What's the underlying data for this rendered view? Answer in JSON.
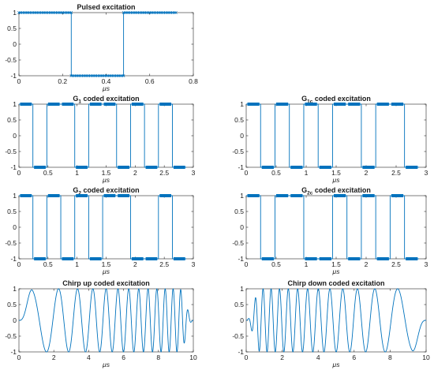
{
  "colors": {
    "line": "#0072BD",
    "axis": "#262626",
    "text": "#1a1a1a"
  },
  "chart_data": [
    {
      "type": "line",
      "title": "Pulsed excitation",
      "xlabel": "μs",
      "xlim": [
        0,
        0.8
      ],
      "ylim": [
        -1,
        1
      ],
      "xticks": [
        0,
        0.2,
        0.4,
        0.6,
        0.8
      ],
      "xtick_labels": [
        "0",
        "0.2",
        "0.4",
        "0.6",
        "0.8"
      ],
      "yticks": [
        -1,
        -0.5,
        0,
        0.5,
        1
      ],
      "ytick_labels": [
        "-1",
        "-0.5",
        "0",
        "0.5",
        "1"
      ],
      "marker": "x",
      "signal": {
        "kind": "pulse",
        "period": 0.72,
        "segments": [
          {
            "value": 1,
            "start": 0.0,
            "end": 0.24
          },
          {
            "value": -1,
            "start": 0.24,
            "end": 0.48
          },
          {
            "value": 1,
            "start": 0.48,
            "end": 0.72
          }
        ]
      }
    },
    {
      "type": "line",
      "title": "G",
      "title_sub": "1",
      "title_rest": " coded excitation",
      "xlabel": "μs",
      "xlim": [
        0,
        3
      ],
      "ylim": [
        -1,
        1
      ],
      "xticks": [
        0,
        0.5,
        1,
        1.5,
        2,
        2.5,
        3
      ],
      "xtick_labels": [
        "0",
        "0.5",
        "1",
        "1.5",
        "2",
        "2.5",
        "3"
      ],
      "yticks": [
        -1,
        -0.5,
        0,
        0.5,
        1
      ],
      "ytick_labels": [
        "-1",
        "-0.5",
        "0",
        "0.5",
        "1"
      ],
      "signal": {
        "kind": "code",
        "chip_duration": 0.24,
        "total": 2.88,
        "chips": [
          1,
          -1,
          1,
          1,
          -1,
          1,
          1,
          -1,
          1,
          -1,
          1,
          -1
        ]
      }
    },
    {
      "type": "line",
      "title": "G",
      "title_sub": "1c",
      "title_rest": " coded excitation",
      "xlabel": "μs",
      "xlim": [
        0,
        3
      ],
      "ylim": [
        -1,
        1
      ],
      "xticks": [
        0,
        0.5,
        1,
        1.5,
        2,
        2.5,
        3
      ],
      "xtick_labels": [
        "0",
        "0.5",
        "1",
        "1.5",
        "2",
        "2.5",
        "3"
      ],
      "yticks": [
        -1,
        -0.5,
        0,
        0.5,
        1
      ],
      "ytick_labels": [
        "-1",
        "-0.5",
        "0",
        "0.5",
        "1"
      ],
      "signal": {
        "kind": "code",
        "chip_duration": 0.24,
        "total": 2.88,
        "chips": [
          1,
          -1,
          1,
          -1,
          1,
          -1,
          1,
          1,
          -1,
          1,
          1,
          -1
        ]
      }
    },
    {
      "type": "line",
      "title": "G",
      "title_sub": "2",
      "title_rest": " coded excitation",
      "xlabel": "μs",
      "xlim": [
        0,
        3
      ],
      "ylim": [
        -1,
        1
      ],
      "xticks": [
        0,
        0.5,
        1,
        1.5,
        2,
        2.5,
        3
      ],
      "xtick_labels": [
        "0",
        "0.5",
        "1",
        "1.5",
        "2",
        "2.5",
        "3"
      ],
      "yticks": [
        -1,
        -0.5,
        0,
        0.5,
        1
      ],
      "ytick_labels": [
        "-1",
        "-0.5",
        "0",
        "0.5",
        "1"
      ],
      "signal": {
        "kind": "code",
        "chip_duration": 0.24,
        "total": 2.88,
        "chips": [
          1,
          -1,
          1,
          -1,
          1,
          -1,
          1,
          1,
          -1,
          -1,
          1,
          -1
        ]
      }
    },
    {
      "type": "line",
      "title": "G",
      "title_sub": "2c",
      "title_rest": " coded excitation",
      "xlabel": "μs",
      "xlim": [
        0,
        3
      ],
      "ylim": [
        -1,
        1
      ],
      "xticks": [
        0,
        0.5,
        1,
        1.5,
        2,
        2.5,
        3
      ],
      "xtick_labels": [
        "0",
        "0.5",
        "1",
        "1.5",
        "2",
        "2.5",
        "3"
      ],
      "yticks": [
        -1,
        -0.5,
        0,
        0.5,
        1
      ],
      "ytick_labels": [
        "-1",
        "-0.5",
        "0",
        "0.5",
        "1"
      ],
      "signal": {
        "kind": "code",
        "chip_duration": 0.24,
        "total": 2.88,
        "chips": [
          1,
          -1,
          1,
          1,
          -1,
          -1,
          1,
          -1,
          1,
          -1,
          1,
          -1
        ]
      }
    },
    {
      "type": "line",
      "title": "Chirp up coded excitation",
      "xlabel": "μs",
      "xlim": [
        0,
        10
      ],
      "ylim": [
        -1,
        1
      ],
      "xticks": [
        0,
        2,
        4,
        6,
        8,
        10
      ],
      "xtick_labels": [
        "0",
        "2",
        "4",
        "6",
        "8",
        "10"
      ],
      "yticks": [
        -1,
        -0.5,
        0,
        0.5,
        1
      ],
      "ytick_labels": [
        "-1",
        "-0.5",
        "0",
        "0.5",
        "1"
      ],
      "signal": {
        "kind": "chirp",
        "direction": "up",
        "duration": 10,
        "f_start_mhz": 0.3,
        "f_end_mhz": 2.5,
        "taper": 0.8
      }
    },
    {
      "type": "line",
      "title": "Chirp down coded excitation",
      "xlabel": "μs",
      "xlim": [
        0,
        10
      ],
      "ylim": [
        -1,
        1
      ],
      "xticks": [
        0,
        2,
        4,
        6,
        8,
        10
      ],
      "xtick_labels": [
        "0",
        "2",
        "4",
        "6",
        "8",
        "10"
      ],
      "yticks": [
        -1,
        -0.5,
        0,
        0.5,
        1
      ],
      "ytick_labels": [
        "-1",
        "-0.5",
        "0",
        "0.5",
        "1"
      ],
      "signal": {
        "kind": "chirp",
        "direction": "down",
        "duration": 10,
        "f_start_mhz": 2.5,
        "f_end_mhz": 0.3,
        "taper": 0.8
      }
    }
  ]
}
